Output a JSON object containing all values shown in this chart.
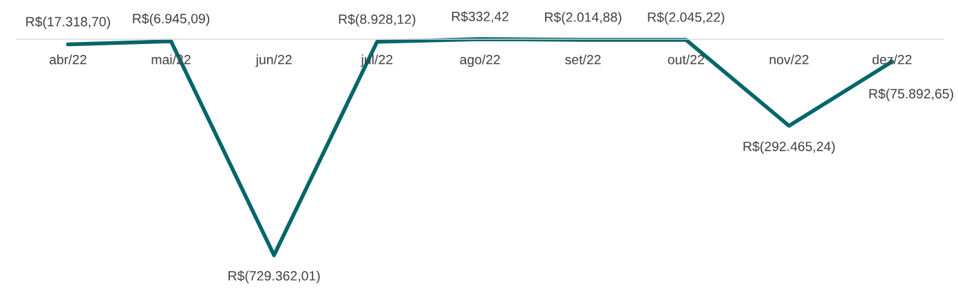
{
  "chart_data": {
    "type": "line",
    "categories": [
      "abr/22",
      "mai/22",
      "jun/22",
      "jul/22",
      "ago/22",
      "set/22",
      "out/22",
      "nov/22",
      "dez/22"
    ],
    "series": [
      {
        "color": "#00666a",
        "values": [
          -17318.7,
          -6945.09,
          -729362.01,
          -8928.12,
          332.42,
          -2014.88,
          -2045.22,
          -292465.24,
          -75892.65
        ],
        "value_labels": [
          "R$(17.318,70)",
          "R$(6.945,09)",
          "R$(729.362,01)",
          "R$(8.928,12)",
          "R$332,42",
          "R$(2.014,88)",
          "R$(2.045,22)",
          "R$(292.465,24)",
          "R$(75.892,65)"
        ]
      }
    ],
    "grid": false,
    "marker": "none",
    "line_style": "solid"
  }
}
